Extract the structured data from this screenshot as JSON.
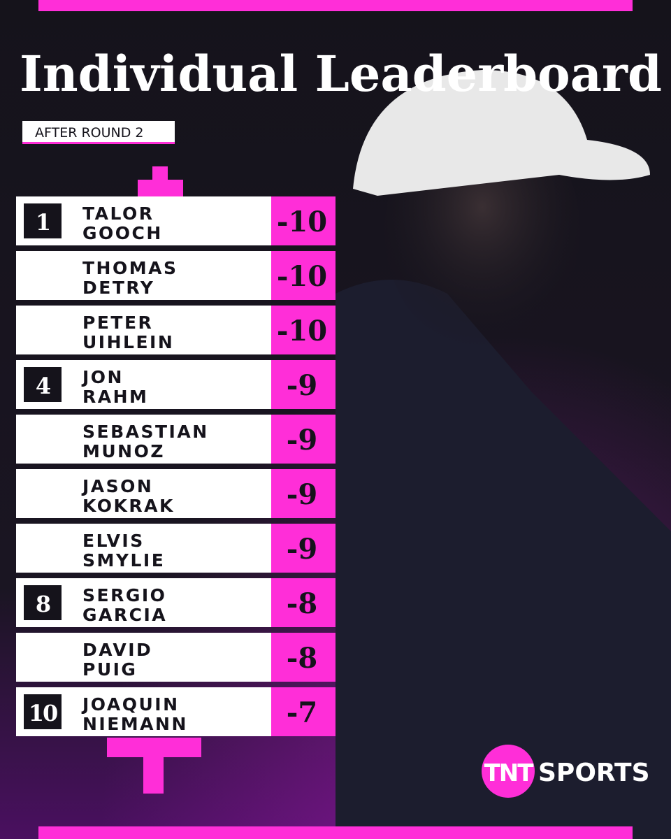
{
  "title": "Individual Leaderboard",
  "subtitle": "AFTER ROUND 2",
  "rows": [
    {
      "position": "1",
      "first": "TALOR",
      "last": "GOOCH",
      "score": "-10"
    },
    {
      "first": "THOMAS",
      "last": "DETRY",
      "score": "-10"
    },
    {
      "first": "PETER",
      "last": "UIHLEIN",
      "score": "-10"
    },
    {
      "position": "4",
      "first": "JON",
      "last": "RAHM",
      "score": "-9"
    },
    {
      "first": "SEBASTIAN",
      "last": "MUNOZ",
      "score": "-9"
    },
    {
      "first": "JASON",
      "last": "KOKRAK",
      "score": "-9"
    },
    {
      "first": "ELVIS",
      "last": "SMYLIE",
      "score": "-9"
    },
    {
      "position": "8",
      "first": "SERGIO",
      "last": "GARCIA",
      "score": "-8"
    },
    {
      "first": "DAVID",
      "last": "PUIG",
      "score": "-8"
    },
    {
      "position": "10",
      "first": "JOAQUIN",
      "last": "NIEMANN",
      "score": "-7"
    }
  ],
  "brand": {
    "badge": "TNT",
    "name": "SPORTS"
  }
}
